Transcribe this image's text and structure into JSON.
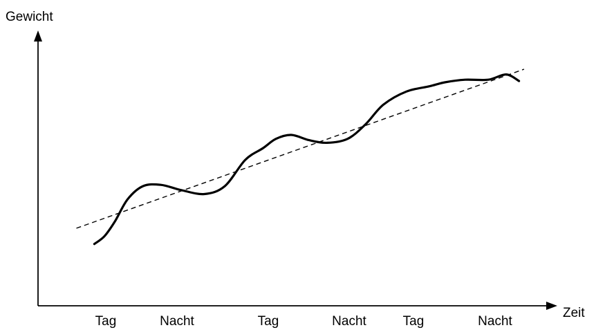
{
  "chart_data": {
    "type": "line",
    "title": "",
    "ylabel": "Gewicht",
    "xlabel": "Zeit",
    "categories": [
      "Tag",
      "Nacht",
      "Tag",
      "Nacht",
      "Tag",
      "Nacht"
    ],
    "xlim": [
      0,
      100
    ],
    "ylim": [
      0,
      100
    ],
    "grid": false,
    "legend": "none",
    "series": [
      {
        "style": "solid",
        "x": [
          11.0,
          13.0,
          15.0,
          17.5,
          20.5,
          24.0,
          28.0,
          32.5,
          36.5,
          40.5,
          44.0,
          46.5,
          49.5,
          53.0,
          56.5,
          60.5,
          64.0,
          67.5,
          72.0,
          76.5,
          79.5,
          83.5,
          88.0,
          91.5,
          94.0
        ],
        "y": [
          23.5,
          26.5,
          32.0,
          40.5,
          45.5,
          46.0,
          44.0,
          42.5,
          45.5,
          55.5,
          60.0,
          63.5,
          65.0,
          63.0,
          62.0,
          63.5,
          69.0,
          76.5,
          81.5,
          83.5,
          85.0,
          86.0,
          86.0,
          88.0,
          85.5
        ]
      },
      {
        "style": "dashed",
        "x": [
          7.5,
          95.0
        ],
        "y": [
          29.5,
          90.0
        ]
      }
    ]
  }
}
